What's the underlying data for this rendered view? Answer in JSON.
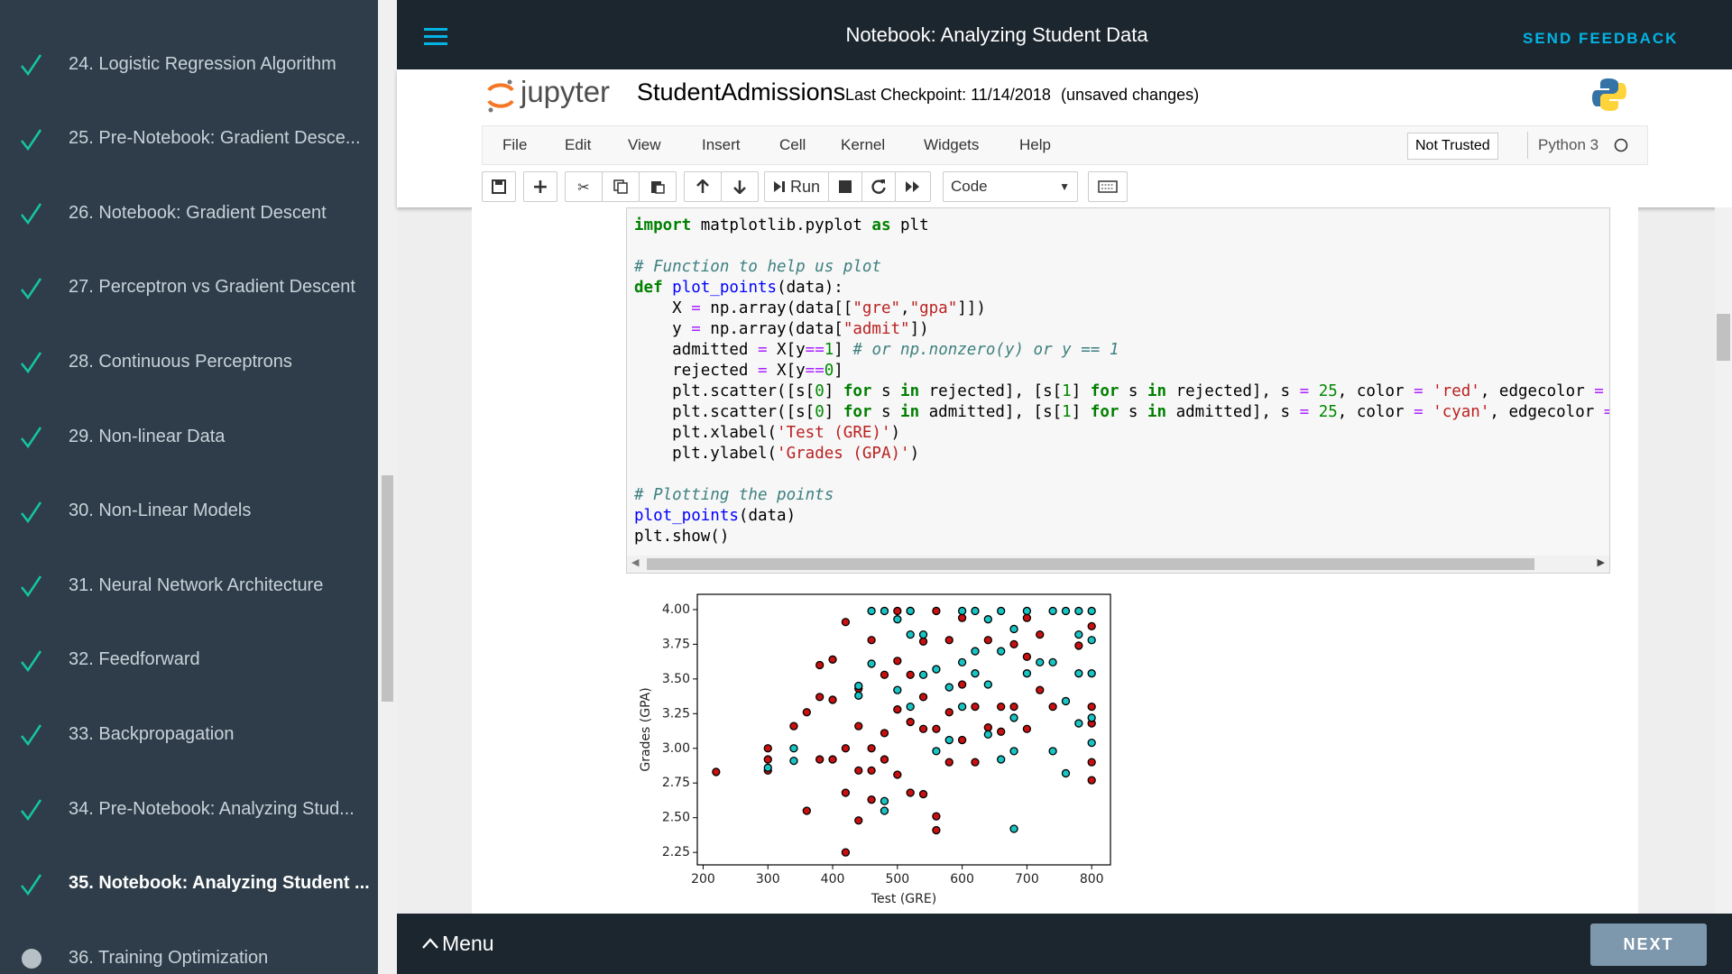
{
  "sidebar": {
    "items": [
      {
        "label": "24. Logistic Regression Algorithm",
        "status": "complete"
      },
      {
        "label": "25. Pre-Notebook: Gradient Desce...",
        "status": "complete"
      },
      {
        "label": "26. Notebook: Gradient Descent",
        "status": "complete"
      },
      {
        "label": "27. Perceptron vs Gradient Descent",
        "status": "complete"
      },
      {
        "label": "28. Continuous Perceptrons",
        "status": "complete"
      },
      {
        "label": "29. Non-linear Data",
        "status": "complete"
      },
      {
        "label": "30. Non-Linear Models",
        "status": "complete"
      },
      {
        "label": "31. Neural Network Architecture",
        "status": "complete"
      },
      {
        "label": "32. Feedforward",
        "status": "complete"
      },
      {
        "label": "33. Backpropagation",
        "status": "complete"
      },
      {
        "label": "34. Pre-Notebook: Analyzing Stud...",
        "status": "complete"
      },
      {
        "label": "35. Notebook: Analyzing Student ...",
        "status": "current"
      },
      {
        "label": "36. Training Optimization",
        "status": "incomplete"
      }
    ]
  },
  "header": {
    "title": "Notebook: Analyzing Student Data",
    "feedback": "SEND FEEDBACK"
  },
  "jupyter": {
    "logo": "jupyter",
    "notebook": "StudentAdmissions",
    "checkpoint": "Last Checkpoint: 11/14/2018",
    "status": "(unsaved changes)",
    "menu": [
      "File",
      "Edit",
      "View",
      "Insert",
      "Cell",
      "Kernel",
      "Widgets",
      "Help"
    ],
    "trusted": "Not Trusted",
    "kernel": "Python 3",
    "run": "Run",
    "cell_type": "Code"
  },
  "cell": {
    "blocks": [
      [
        "import matplotlib.pyplot as plt"
      ],
      [
        "# Function to help us plot",
        "def plot_points(data):",
        "    X = np.array(data[[\"gre\",\"gpa\"]])",
        "    y = np.array(data[\"admit\"])",
        "    admitted = X[y==1] # or np.nonzero(y) or y == 1",
        "    rejected = X[y==0]",
        "    plt.scatter([s[0] for s in rejected], [s[1] for s in rejected], s = 25, color = 'red', edgecolor =",
        "    plt.scatter([s[0] for s in admitted], [s[1] for s in admitted], s = 25, color = 'cyan', edgecolor =",
        "    plt.xlabel('Test (GRE)')",
        "    plt.ylabel('Grades (GPA)')"
      ],
      [
        "# Plotting the points",
        "plot_points(data)",
        "plt.show()"
      ]
    ]
  },
  "chart_data": {
    "type": "scatter",
    "x_label": "Test (GRE)",
    "y_label": "Grades (GPA)",
    "xlim": [
      191,
      829
    ],
    "ylim": [
      2.16,
      4.11
    ],
    "xticks": [
      200,
      300,
      400,
      500,
      600,
      700,
      800
    ],
    "yticks": [
      {
        "value": 2.25,
        "label": "2.25"
      },
      {
        "value": 2.5,
        "label": "2.50"
      },
      {
        "value": 2.75,
        "label": "2.75"
      },
      {
        "value": 3,
        "label": "3.00"
      },
      {
        "value": 3.25,
        "label": "3.25"
      },
      {
        "value": 3.5,
        "label": "3.50"
      },
      {
        "value": 3.75,
        "label": "3.75"
      },
      {
        "value": 4,
        "label": "4.00"
      }
    ],
    "series": [
      {
        "color": "#c81010",
        "x": [
          220,
          300,
          300,
          300,
          340,
          360,
          360,
          380,
          380,
          380,
          400,
          400,
          400,
          420,
          420,
          420,
          420,
          440,
          440,
          440,
          440,
          460,
          460,
          460,
          460,
          480,
          480,
          480,
          500,
          500,
          500,
          500,
          520,
          520,
          520,
          520,
          540,
          540,
          540,
          540,
          560,
          560,
          560,
          560,
          580,
          580,
          580,
          600,
          600,
          600,
          620,
          620,
          640,
          640,
          660,
          660,
          680,
          680,
          700,
          700,
          700,
          720,
          720,
          740,
          780,
          800,
          800,
          800,
          800,
          800
        ],
        "values": [
          2.83,
          3.0,
          2.92,
          2.84,
          3.16,
          3.26,
          2.55,
          2.92,
          3.37,
          3.6,
          3.64,
          2.92,
          3.35,
          3.91,
          2.25,
          2.68,
          3.0,
          2.48,
          2.84,
          3.16,
          3.43,
          3.78,
          3.0,
          2.84,
          2.63,
          3.53,
          3.11,
          2.92,
          3.99,
          2.81,
          3.28,
          3.63,
          2.68,
          3.19,
          3.53,
          3.99,
          2.67,
          3.14,
          3.37,
          3.77,
          2.41,
          2.51,
          3.99,
          3.14,
          3.78,
          3.26,
          2.9,
          3.46,
          3.06,
          3.94,
          3.3,
          2.9,
          3.78,
          3.15,
          3.3,
          3.12,
          3.75,
          3.3,
          3.66,
          3.14,
          3.94,
          3.42,
          3.82,
          3.3,
          3.74,
          3.88,
          3.3,
          2.77,
          2.9,
          3.18
        ]
      },
      {
        "color": "#19c4c4",
        "x": [
          300,
          340,
          340,
          440,
          440,
          460,
          460,
          480,
          480,
          480,
          500,
          500,
          520,
          520,
          520,
          540,
          540,
          560,
          560,
          580,
          580,
          600,
          600,
          600,
          620,
          620,
          620,
          640,
          640,
          640,
          660,
          660,
          660,
          680,
          680,
          680,
          680,
          700,
          700,
          720,
          740,
          740,
          740,
          760,
          760,
          760,
          780,
          780,
          780,
          780,
          800,
          800,
          800,
          800,
          800
        ],
        "values": [
          2.86,
          3.0,
          2.91,
          3.45,
          3.38,
          3.99,
          3.61,
          2.62,
          2.55,
          3.99,
          3.42,
          3.93,
          3.82,
          3.99,
          3.3,
          3.82,
          3.53,
          3.57,
          2.98,
          3.44,
          3.06,
          3.62,
          3.3,
          3.99,
          3.99,
          3.7,
          3.54,
          3.93,
          3.46,
          3.1,
          3.99,
          3.7,
          2.92,
          2.42,
          3.86,
          3.22,
          2.98,
          3.99,
          3.54,
          3.62,
          3.99,
          3.62,
          2.98,
          3.99,
          3.34,
          2.82,
          3.99,
          3.82,
          3.54,
          3.18,
          3.99,
          3.78,
          3.54,
          3.22,
          3.04
        ]
      }
    ]
  },
  "footer": {
    "menu": "Menu",
    "next": "NEXT"
  }
}
